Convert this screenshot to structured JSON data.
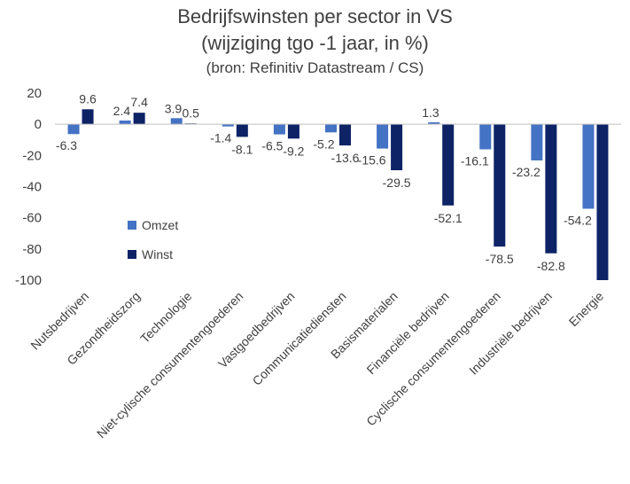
{
  "chart_data": {
    "type": "bar",
    "title": "Bedrijfswinsten per sector in VS",
    "subtitle": "(wijziging tgo -1 jaar, in %)",
    "source": "(bron: Refinitiv Datastream / CS)",
    "xlabel": "",
    "ylabel": "",
    "ylim": [
      -100,
      20
    ],
    "yticks": [
      20,
      0,
      -20,
      -40,
      -60,
      -80,
      -100
    ],
    "grid": false,
    "legend": "inside-left",
    "categories": [
      "Nutsbedrijven",
      "Gezondheidszorg",
      "Technologie",
      "Niet-cylische consumentengoederen",
      "Vastgoedbedrijven",
      "Communicatiediensten",
      "Basismaterialen",
      "Financiële bedrijven",
      "Cyclische consumentengoederen",
      "Industriële bedrijven",
      "Energie"
    ],
    "series": [
      {
        "name": "Omzet",
        "color": "#4472c4",
        "values": [
          -6.3,
          2.4,
          3.9,
          -1.4,
          -6.5,
          -5.2,
          -15.6,
          1.3,
          -16.1,
          -23.2,
          -54.2
        ],
        "labels": [
          "-6.3",
          "2.4",
          "3.9",
          "-1.4",
          "-6.5",
          "-5.2",
          "-15.6",
          "1.3",
          "-16.1",
          "-23.2",
          "-54.2"
        ]
      },
      {
        "name": "Winst",
        "color": "#0d2366",
        "values": [
          9.6,
          7.4,
          0.5,
          -8.1,
          -9.2,
          -13.6,
          -29.5,
          -52.1,
          -78.5,
          -82.8,
          -101
        ],
        "labels": [
          "9.6",
          "7.4",
          "0.5",
          "-8.1",
          "-9.2",
          "-13.6",
          "-29.5",
          "-52.1",
          "-78.5",
          "-82.8",
          ""
        ]
      }
    ]
  }
}
